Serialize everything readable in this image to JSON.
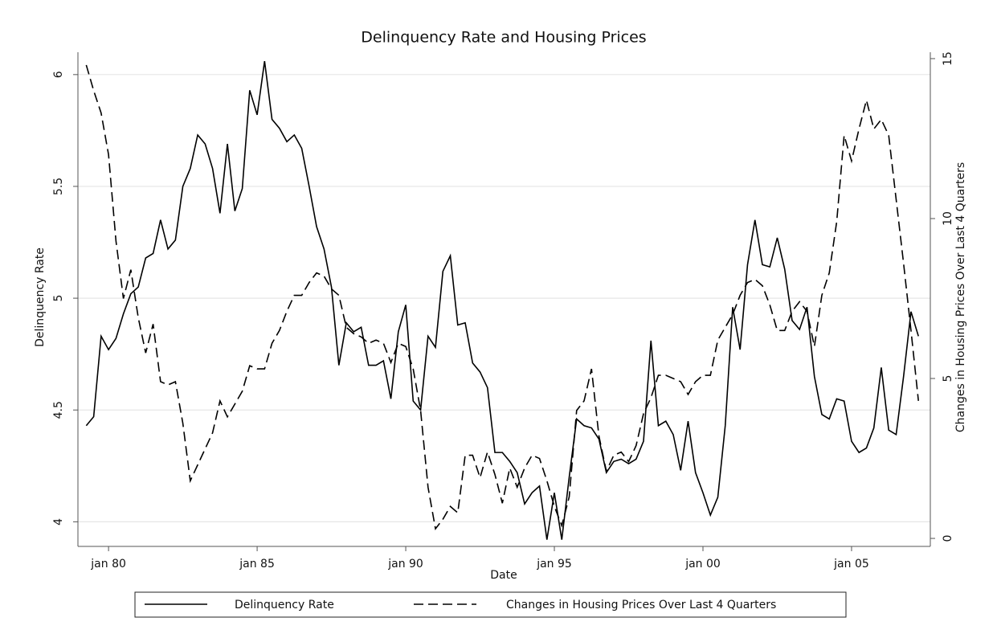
{
  "chart_data": {
    "type": "line",
    "title": "Delinquency Rate and Housing Prices",
    "x_label": "Date",
    "y_label": "Delinquency Rate",
    "y2_label": "Changes in Housing Prices Over Last 4 Quarters",
    "x": [
      1979.25,
      1979.5,
      1979.75,
      1980,
      1980.25,
      1980.5,
      1980.75,
      1981,
      1981.25,
      1981.5,
      1981.75,
      1982,
      1982.25,
      1982.5,
      1982.75,
      1983,
      1983.25,
      1983.5,
      1983.75,
      1984,
      1984.25,
      1984.5,
      1984.75,
      1985,
      1985.25,
      1985.5,
      1985.75,
      1986,
      1986.25,
      1986.5,
      1986.75,
      1987,
      1987.25,
      1987.5,
      1987.75,
      1988,
      1988.25,
      1988.5,
      1988.75,
      1989,
      1989.25,
      1989.5,
      1989.75,
      1990,
      1990.25,
      1990.5,
      1990.75,
      1991,
      1991.25,
      1991.5,
      1991.75,
      1992,
      1992.25,
      1992.5,
      1992.75,
      1993,
      1993.25,
      1993.5,
      1993.75,
      1994,
      1994.25,
      1994.5,
      1994.75,
      1995,
      1995.25,
      1995.5,
      1995.75,
      1996,
      1996.25,
      1996.5,
      1996.75,
      1997,
      1997.25,
      1997.5,
      1997.75,
      1998,
      1998.25,
      1998.5,
      1998.75,
      1999,
      1999.25,
      1999.5,
      1999.75,
      2000,
      2000.25,
      2000.5,
      2000.75,
      2001,
      2001.25,
      2001.5,
      2001.75,
      2002,
      2002.25,
      2002.5,
      2002.75,
      2003,
      2003.25,
      2003.5,
      2003.75,
      2004,
      2004.25,
      2004.5,
      2004.75,
      2005,
      2005.25,
      2005.5,
      2005.75,
      2006,
      2006.25,
      2006.5,
      2006.75,
      2007,
      2007.25
    ],
    "series": [
      {
        "name": "Delinquency Rate",
        "color": "#000000",
        "dashed": false,
        "axis": "y",
        "values": [
          4.43,
          4.47,
          4.83,
          4.77,
          4.82,
          4.93,
          5.02,
          5.05,
          5.18,
          5.2,
          5.35,
          5.22,
          5.26,
          5.5,
          5.58,
          5.73,
          5.69,
          5.58,
          5.38,
          5.69,
          5.39,
          5.49,
          5.93,
          5.82,
          6.06,
          5.8,
          5.76,
          5.7,
          5.73,
          5.67,
          5.5,
          5.32,
          5.22,
          5.05,
          4.7,
          4.89,
          4.85,
          4.87,
          4.7,
          4.7,
          4.72,
          4.55,
          4.85,
          4.97,
          4.54,
          4.5,
          4.83,
          4.78,
          5.12,
          5.19,
          4.88,
          4.89,
          4.71,
          4.67,
          4.6,
          4.31,
          4.31,
          4.27,
          4.22,
          4.08,
          4.13,
          4.16,
          3.92,
          4.13,
          3.92,
          4.2,
          4.46,
          4.43,
          4.42,
          4.37,
          4.22,
          4.27,
          4.28,
          4.26,
          4.28,
          4.36,
          4.81,
          4.43,
          4.45,
          4.39,
          4.23,
          4.45,
          4.22,
          4.13,
          4.03,
          4.11,
          4.43,
          4.96,
          4.77,
          5.15,
          5.35,
          5.15,
          5.14,
          5.27,
          5.13,
          4.9,
          4.86,
          4.96,
          4.65,
          4.48,
          4.46,
          4.55,
          4.54,
          4.36,
          4.31,
          4.33,
          4.42,
          4.69,
          4.41,
          4.39,
          4.65,
          4.94,
          4.83
        ]
      },
      {
        "name": "Changes in Housing Prices Over Last 4 Quarters",
        "color": "#000000",
        "dashed": true,
        "axis": "y2",
        "values": [
          14.8,
          14.0,
          13.3,
          12.0,
          9.3,
          7.5,
          8.4,
          6.9,
          5.8,
          6.7,
          4.9,
          4.8,
          4.9,
          3.6,
          1.8,
          2.3,
          2.8,
          3.3,
          4.3,
          3.8,
          4.2,
          4.6,
          5.4,
          5.3,
          5.3,
          6.1,
          6.5,
          7.1,
          7.6,
          7.6,
          8.0,
          8.3,
          8.2,
          7.8,
          7.6,
          6.6,
          6.4,
          6.3,
          6.1,
          6.2,
          6.1,
          5.5,
          6.1,
          6.0,
          5.3,
          4.0,
          1.6,
          0.3,
          0.6,
          1.0,
          0.8,
          2.6,
          2.6,
          1.9,
          2.7,
          2.0,
          1.1,
          2.2,
          1.6,
          2.2,
          2.6,
          2.5,
          1.8,
          1.0,
          0.4,
          1.3,
          4.0,
          4.3,
          5.3,
          3.2,
          2.1,
          2.6,
          2.7,
          2.4,
          2.9,
          3.9,
          4.4,
          5.1,
          5.1,
          5.0,
          4.9,
          4.5,
          4.9,
          5.1,
          5.1,
          6.2,
          6.6,
          7.0,
          7.6,
          8.0,
          8.1,
          7.9,
          7.3,
          6.5,
          6.5,
          7.1,
          7.4,
          7.1,
          6.0,
          7.6,
          8.3,
          9.9,
          12.6,
          11.8,
          12.8,
          13.7,
          12.8,
          13.1,
          12.6,
          10.6,
          8.6,
          6.5,
          4.3
        ]
      }
    ],
    "xlim": [
      1978.97,
      2007.65
    ],
    "xticks": [
      {
        "value": 1980,
        "label": "jan 80"
      },
      {
        "value": 1985,
        "label": "jan 85"
      },
      {
        "value": 1990,
        "label": "jan 90"
      },
      {
        "value": 1995,
        "label": "jan 95"
      },
      {
        "value": 2000,
        "label": "jan 00"
      },
      {
        "value": 2005,
        "label": "jan 05"
      }
    ],
    "ylim": [
      3.89,
      6.1
    ],
    "yticks": [
      4,
      4.5,
      5,
      5.5,
      6
    ],
    "y2lim": [
      -0.25,
      15.2
    ],
    "y2ticks": [
      0,
      5,
      10,
      15
    ],
    "grid": true,
    "legend": "bottom"
  }
}
